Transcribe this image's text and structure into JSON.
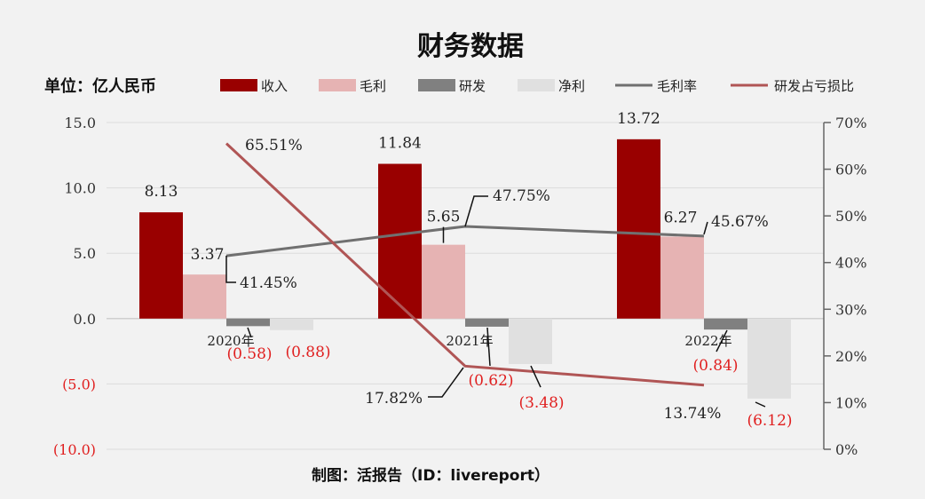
{
  "title": "财务数据",
  "unit_label": "单位：亿人民币",
  "footer": "制图：活报告（ID：livereport）",
  "colors": {
    "revenue": "#990000",
    "gross_profit": "#e6b3b3",
    "rnd": "#808080",
    "net_profit": "#e0e0e0",
    "gross_margin": "#707070",
    "rnd_ratio": "#b05555",
    "negative_text": "#e02020"
  },
  "chart_data": {
    "type": "bar",
    "title": "财务数据",
    "categories": [
      "2020年",
      "2021年",
      "2022年"
    ],
    "series": [
      {
        "name": "收入",
        "type": "bar",
        "values": [
          8.13,
          11.84,
          13.72
        ],
        "labels": [
          "8.13",
          "11.84",
          "13.72"
        ]
      },
      {
        "name": "毛利",
        "type": "bar",
        "values": [
          3.37,
          5.65,
          6.27
        ],
        "labels": [
          "3.37",
          "5.65",
          "6.27"
        ]
      },
      {
        "name": "研发",
        "type": "bar",
        "values": [
          -0.58,
          -0.62,
          -0.84
        ],
        "labels": [
          "(0.58)",
          "(0.62)",
          "(0.84)"
        ]
      },
      {
        "name": "净利",
        "type": "bar",
        "values": [
          -0.88,
          -3.48,
          -6.12
        ],
        "labels": [
          "(0.88)",
          "(3.48)",
          "(6.12)"
        ]
      },
      {
        "name": "毛利率",
        "type": "line",
        "axis": "right",
        "values": [
          41.45,
          47.75,
          45.67
        ],
        "labels": [
          "41.45%",
          "47.75%",
          "45.67%"
        ]
      },
      {
        "name": "研发占亏损比",
        "type": "line",
        "axis": "right",
        "values": [
          65.51,
          17.82,
          13.74
        ],
        "labels": [
          "65.51%",
          "17.82%",
          "13.74%"
        ]
      }
    ],
    "y_left": {
      "range": [
        -10,
        15
      ],
      "ticks": [
        15,
        10,
        5,
        0,
        -5,
        -10
      ],
      "tick_labels": [
        "15.0",
        "10.0",
        "5.0",
        "0.0",
        "(5.0)",
        "(10.0)"
      ]
    },
    "y_right": {
      "range": [
        0,
        70
      ],
      "ticks": [
        70,
        60,
        50,
        40,
        30,
        20,
        10,
        0
      ],
      "tick_labels": [
        "70%",
        "60%",
        "50%",
        "40%",
        "30%",
        "20%",
        "10%",
        "0%"
      ]
    },
    "grid": true,
    "legend": "top"
  }
}
